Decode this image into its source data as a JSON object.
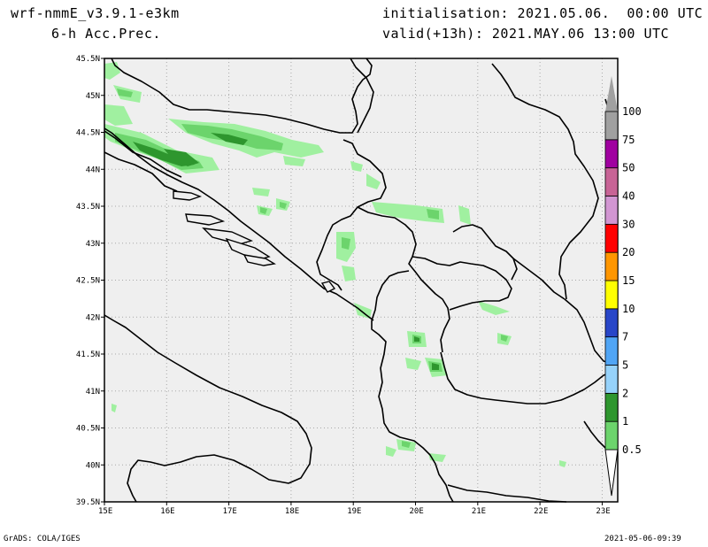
{
  "header": {
    "model": "wrf-nmmE_v3.9.1-e3km",
    "field": "6-h Acc.Prec.",
    "init": "initialisation: 2021.05.06.  00:00 UTC",
    "valid": "valid(+13h): 2021.MAY.06 13:00 UTC"
  },
  "footer": {
    "left": "GrADS: COLA/IGES",
    "right": "2021-05-06-09:39"
  },
  "map": {
    "lon_labels": [
      "15E",
      "16E",
      "17E",
      "18E",
      "19E",
      "20E",
      "21E",
      "22E",
      "23E"
    ],
    "lat_labels": [
      "45.5N",
      "45N",
      "44.5N",
      "44N",
      "43.5N",
      "43N",
      "42.5N",
      "42N",
      "41.5N",
      "41N",
      "40.5N",
      "40N",
      "39.5N"
    ],
    "lon_range": [
      15,
      23.25
    ],
    "lat_range": [
      39.5,
      45.5
    ],
    "background": "#efefef",
    "grid": true
  },
  "colorbar": {
    "levels": [
      "0.5",
      "1",
      "2",
      "5",
      "7",
      "10",
      "15",
      "20",
      "30",
      "40",
      "50",
      "75",
      "100"
    ],
    "colors": [
      "#a0f0a0",
      "#6cd46c",
      "#2e962e",
      "#96d2fa",
      "#50a5f5",
      "#2846c8",
      "#ffff00",
      "#ff9600",
      "#ff0000",
      "#d296d2",
      "#c86496",
      "#a000a0",
      "#a0a0a0"
    ]
  }
}
